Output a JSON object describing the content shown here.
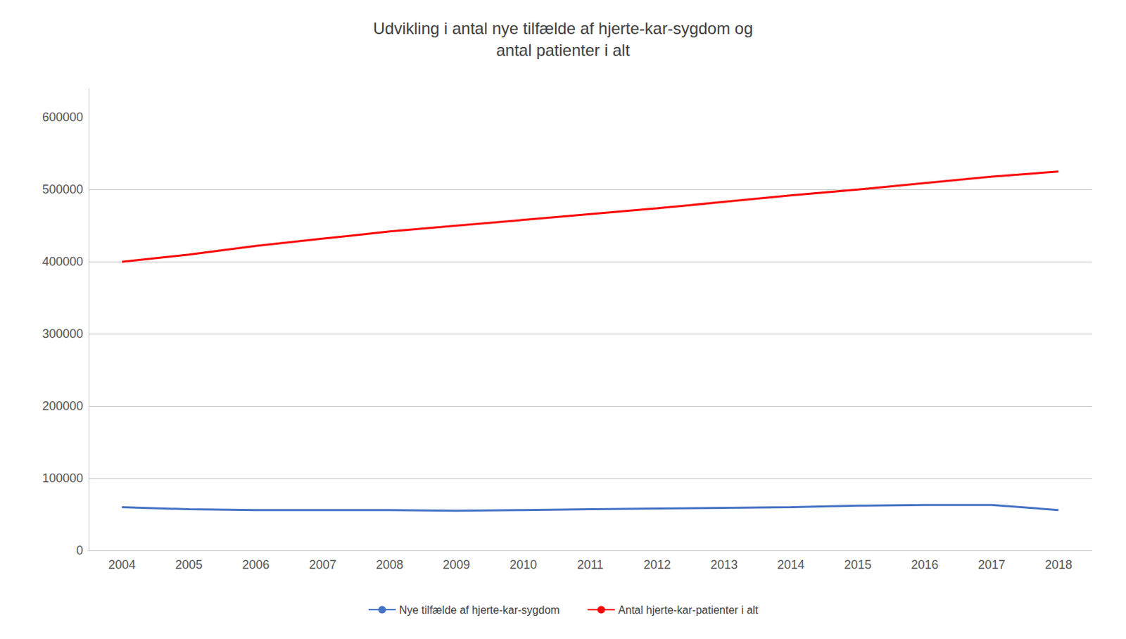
{
  "chart_data": {
    "type": "line",
    "title": "Udvikling i antal nye tilfælde af hjerte-kar-sygdom og\nantal patienter i alt",
    "categories": [
      "2004",
      "2005",
      "2006",
      "2007",
      "2008",
      "2009",
      "2010",
      "2011",
      "2012",
      "2013",
      "2014",
      "2015",
      "2016",
      "2017",
      "2018"
    ],
    "series": [
      {
        "name": "Nye tilfælde af hjerte-kar-sygdom",
        "color": "#4472C4",
        "values": [
          60000,
          57000,
          56000,
          56000,
          56000,
          55000,
          56000,
          57000,
          58000,
          59000,
          60000,
          62000,
          63000,
          63000,
          56000
        ]
      },
      {
        "name": "Antal hjerte-kar-patienter i alt",
        "color": "#FF0000",
        "values": [
          400000,
          410000,
          422000,
          432000,
          442000,
          450000,
          458000,
          466000,
          474000,
          483000,
          492000,
          500000,
          509000,
          518000,
          525000
        ]
      }
    ],
    "ylim": [
      0,
      640000
    ],
    "yticks": [
      0,
      100000,
      200000,
      300000,
      400000,
      500000,
      600000
    ],
    "grid": true,
    "legend": "bottom"
  }
}
